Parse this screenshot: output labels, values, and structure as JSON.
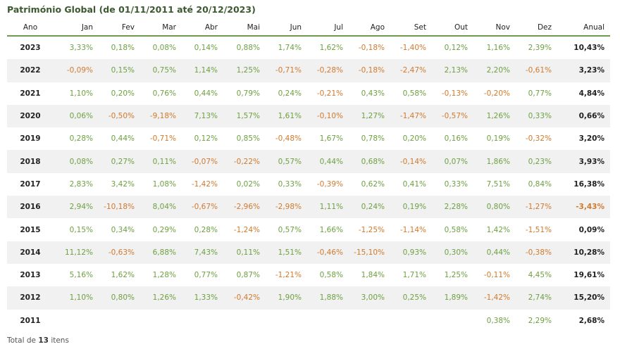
{
  "title": "Património Global (de 01/11/2011 até 20/12/2023)",
  "columns": [
    "Ano",
    "Jan",
    "Fev",
    "Mar",
    "Abr",
    "Mai",
    "Jun",
    "Jul",
    "Ago",
    "Set",
    "Out",
    "Nov",
    "Dez",
    "Anual"
  ],
  "rows": [
    {
      "year": "2023",
      "months": [
        "3,33%",
        "0,18%",
        "0,08%",
        "0,14%",
        "0,88%",
        "1,74%",
        "1,62%",
        "-0,18%",
        "-1,40%",
        "0,12%",
        "1,16%",
        "2,39%"
      ],
      "annual": "10,43%"
    },
    {
      "year": "2022",
      "months": [
        "-0,09%",
        "0,15%",
        "0,75%",
        "1,14%",
        "1,25%",
        "-0,71%",
        "-0,28%",
        "-0,18%",
        "-2,47%",
        "2,13%",
        "2,20%",
        "-0,61%"
      ],
      "annual": "3,23%"
    },
    {
      "year": "2021",
      "months": [
        "1,10%",
        "0,20%",
        "0,76%",
        "0,44%",
        "0,79%",
        "0,24%",
        "-0,21%",
        "0,43%",
        "0,58%",
        "-0,13%",
        "-0,20%",
        "0,77%"
      ],
      "annual": "4,84%"
    },
    {
      "year": "2020",
      "months": [
        "0,06%",
        "-0,50%",
        "-9,18%",
        "7,13%",
        "1,57%",
        "1,61%",
        "-0,10%",
        "1,27%",
        "-1,47%",
        "-0,57%",
        "1,26%",
        "0,33%"
      ],
      "annual": "0,66%"
    },
    {
      "year": "2019",
      "months": [
        "0,28%",
        "0,44%",
        "-0,71%",
        "0,12%",
        "0,85%",
        "-0,48%",
        "1,67%",
        "0,78%",
        "0,20%",
        "0,16%",
        "0,19%",
        "-0,32%"
      ],
      "annual": "3,20%"
    },
    {
      "year": "2018",
      "months": [
        "0,08%",
        "0,27%",
        "0,11%",
        "-0,07%",
        "-0,22%",
        "0,57%",
        "0,44%",
        "0,68%",
        "-0,14%",
        "0,07%",
        "1,86%",
        "0,23%"
      ],
      "annual": "3,93%"
    },
    {
      "year": "2017",
      "months": [
        "2,83%",
        "3,42%",
        "1,08%",
        "-1,42%",
        "0,02%",
        "0,33%",
        "-0,39%",
        "0,62%",
        "0,41%",
        "0,33%",
        "7,51%",
        "0,84%"
      ],
      "annual": "16,38%"
    },
    {
      "year": "2016",
      "months": [
        "2,94%",
        "-10,18%",
        "8,04%",
        "-0,67%",
        "-2,96%",
        "-2,98%",
        "1,11%",
        "0,24%",
        "0,19%",
        "2,28%",
        "0,80%",
        "-1,27%"
      ],
      "annual": "-3,43%"
    },
    {
      "year": "2015",
      "months": [
        "0,15%",
        "0,34%",
        "0,29%",
        "0,28%",
        "-1,24%",
        "0,57%",
        "1,66%",
        "-1,25%",
        "-1,14%",
        "0,58%",
        "1,42%",
        "-1,51%"
      ],
      "annual": "0,09%"
    },
    {
      "year": "2014",
      "months": [
        "11,12%",
        "-0,63%",
        "6,88%",
        "7,43%",
        "0,11%",
        "1,51%",
        "-0,46%",
        "-15,10%",
        "0,93%",
        "0,30%",
        "0,44%",
        "-0,38%"
      ],
      "annual": "10,28%"
    },
    {
      "year": "2013",
      "months": [
        "5,16%",
        "1,62%",
        "1,28%",
        "0,77%",
        "0,87%",
        "-1,21%",
        "0,58%",
        "1,84%",
        "1,71%",
        "1,25%",
        "-0,11%",
        "4,45%"
      ],
      "annual": "19,61%"
    },
    {
      "year": "2012",
      "months": [
        "1,10%",
        "0,80%",
        "1,26%",
        "1,33%",
        "-0,42%",
        "1,90%",
        "1,88%",
        "3,00%",
        "0,25%",
        "1,89%",
        "-1,42%",
        "2,74%"
      ],
      "annual": "15,20%"
    },
    {
      "year": "2011",
      "months": [
        "",
        "",
        "",
        "",
        "",
        "",
        "",
        "",
        "",
        "",
        "0,38%",
        "2,29%"
      ],
      "annual": "2,68%"
    }
  ],
  "footer": {
    "prefix": "Total de",
    "count": "13",
    "suffix": "itens"
  },
  "colors": {
    "positive": "#6ea041",
    "negative": "#d07a2e",
    "header_rule": "#6f9a4c",
    "title": "#3b5a2f"
  }
}
